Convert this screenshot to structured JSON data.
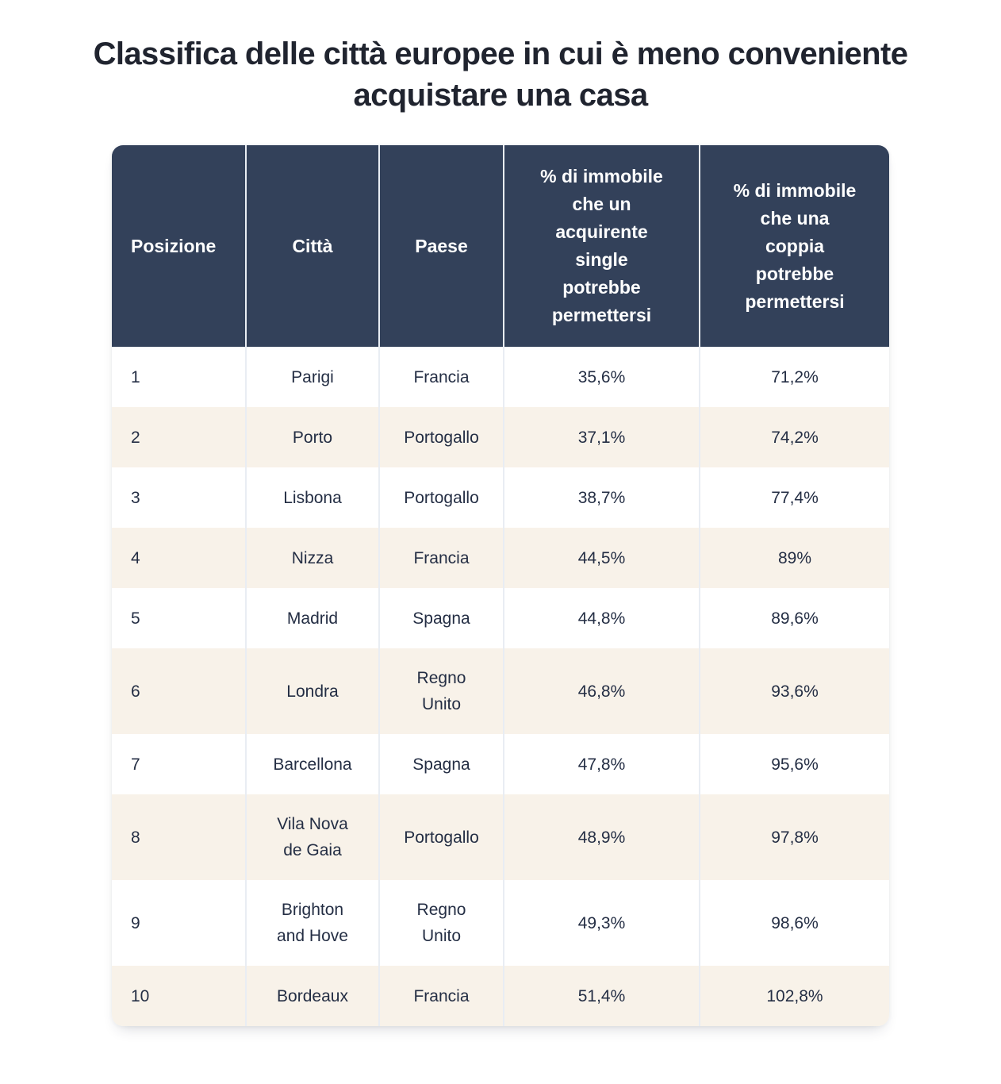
{
  "title": "Classifica delle città europee in cui è meno conveniente\nacquistare una casa",
  "colors": {
    "header_bg": "#33415a",
    "header_text": "#ffffff",
    "row_bg": "#ffffff",
    "row_alt_bg": "#f8f2e9",
    "body_text": "#242e44",
    "title_text": "#20242f",
    "divider": "#e9edf3"
  },
  "chart_data": {
    "type": "table",
    "title": "Classifica delle città europee in cui è meno conveniente acquistare una casa",
    "columns": [
      "Posizione",
      "Città",
      "Paese",
      "% di immobile che un acquirente single potrebbe permettersi",
      "% di immobile che una coppia potrebbe permettersi"
    ],
    "columns_display": [
      "Posizione",
      "Città",
      "Paese",
      "% di immobile\nche un\nacquirente\nsingle\npotrebbe\npermettersi",
      "% di immobile\nche una\ncoppia\npotrebbe\npermettersi"
    ],
    "rows": [
      {
        "posizione": "1",
        "citta": "Parigi",
        "paese": "Francia",
        "single": "35,6%",
        "coppia": "71,2%"
      },
      {
        "posizione": "2",
        "citta": "Porto",
        "paese": "Portogallo",
        "single": "37,1%",
        "coppia": "74,2%"
      },
      {
        "posizione": "3",
        "citta": "Lisbona",
        "paese": "Portogallo",
        "single": "38,7%",
        "coppia": "77,4%"
      },
      {
        "posizione": "4",
        "citta": "Nizza",
        "paese": "Francia",
        "single": "44,5%",
        "coppia": "89%"
      },
      {
        "posizione": "5",
        "citta": "Madrid",
        "paese": "Spagna",
        "single": "44,8%",
        "coppia": "89,6%"
      },
      {
        "posizione": "6",
        "citta": "Londra",
        "paese": "Regno\nUnito",
        "single": "46,8%",
        "coppia": "93,6%"
      },
      {
        "posizione": "7",
        "citta": "Barcellona",
        "paese": "Spagna",
        "single": "47,8%",
        "coppia": "95,6%"
      },
      {
        "posizione": "8",
        "citta": "Vila Nova\nde Gaia",
        "paese": "Portogallo",
        "single": "48,9%",
        "coppia": "97,8%"
      },
      {
        "posizione": "9",
        "citta": "Brighton\nand Hove",
        "paese": "Regno\nUnito",
        "single": "49,3%",
        "coppia": "98,6%"
      },
      {
        "posizione": "10",
        "citta": "Bordeaux",
        "paese": "Francia",
        "single": "51,4%",
        "coppia": "102,8%"
      }
    ]
  }
}
